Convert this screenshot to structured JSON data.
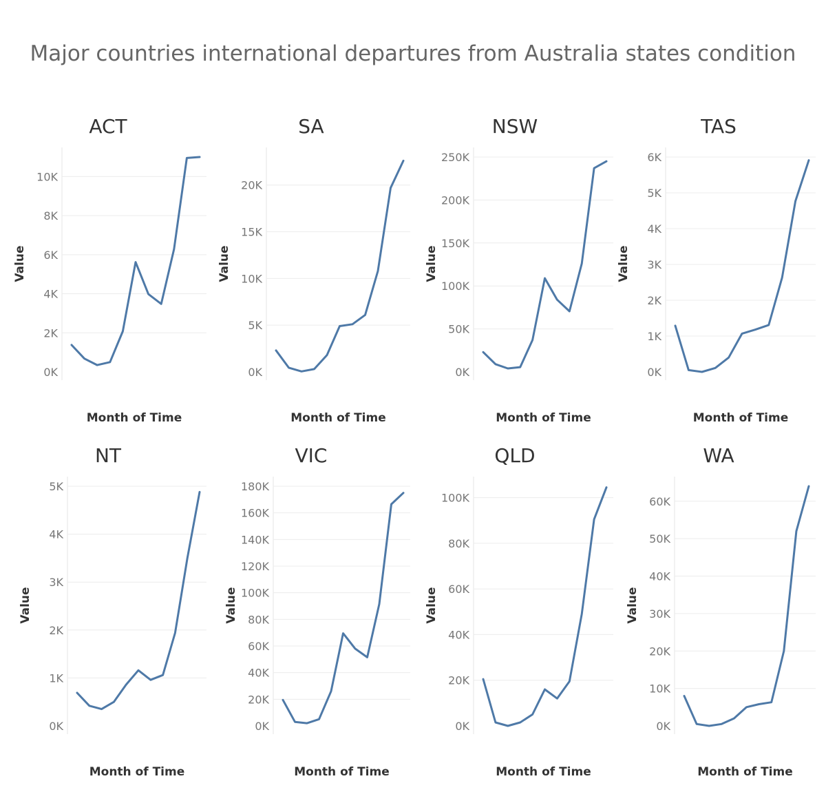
{
  "title": "Major countries international departures from Australia states condition",
  "chart_data": [
    {
      "type": "line",
      "title": "ACT",
      "xlabel": "Month of Time",
      "ylabel": "Value",
      "ylim": [
        0,
        11000
      ],
      "yticks": [
        0,
        2000,
        4000,
        6000,
        8000,
        10000
      ],
      "ytick_labels": [
        "0K",
        "2K",
        "4K",
        "6K",
        "8K",
        "10K"
      ],
      "x": [
        1,
        2,
        3,
        4,
        5,
        6,
        7,
        8,
        9,
        10,
        11
      ],
      "values": [
        1380,
        680,
        350,
        500,
        2080,
        5620,
        3980,
        3480,
        6280,
        10950,
        11000
      ]
    },
    {
      "type": "line",
      "title": "SA",
      "xlabel": "Month of Time",
      "ylabel": "Value",
      "ylim": [
        0,
        23000
      ],
      "yticks": [
        0,
        5000,
        10000,
        15000,
        20000
      ],
      "ytick_labels": [
        "0K",
        "5K",
        "10K",
        "15K",
        "20K"
      ],
      "x": [
        1,
        2,
        3,
        4,
        5,
        6,
        7,
        8,
        9,
        10,
        11
      ],
      "values": [
        2300,
        450,
        50,
        300,
        1800,
        4900,
        5100,
        6100,
        10800,
        19700,
        22600
      ]
    },
    {
      "type": "line",
      "title": "NSW",
      "xlabel": "Month of Time",
      "ylabel": "Value",
      "ylim": [
        0,
        250000
      ],
      "yticks": [
        0,
        50000,
        100000,
        150000,
        200000,
        250000
      ],
      "ytick_labels": [
        "0K",
        "50K",
        "100K",
        "150K",
        "200K",
        "250K"
      ],
      "x": [
        1,
        2,
        3,
        4,
        5,
        6,
        7,
        8,
        9,
        10,
        11
      ],
      "values": [
        23000,
        9000,
        4000,
        5500,
        37000,
        109000,
        84000,
        70500,
        126000,
        237000,
        245000
      ]
    },
    {
      "type": "line",
      "title": "TAS",
      "xlabel": "Month of Time",
      "ylabel": "Value",
      "ylim": [
        0,
        6000
      ],
      "yticks": [
        0,
        1000,
        2000,
        3000,
        4000,
        5000,
        6000
      ],
      "ytick_labels": [
        "0K",
        "1K",
        "2K",
        "3K",
        "4K",
        "5K",
        "6K"
      ],
      "x": [
        1,
        2,
        3,
        4,
        5,
        6,
        7,
        8,
        9,
        10,
        11
      ],
      "values": [
        1290,
        50,
        0,
        110,
        400,
        1070,
        1180,
        1310,
        2630,
        4770,
        5910
      ]
    },
    {
      "type": "line",
      "title": "NT",
      "xlabel": "Month of Time",
      "ylabel": "Value",
      "ylim": [
        0,
        5000
      ],
      "yticks": [
        0,
        1000,
        2000,
        3000,
        4000,
        5000
      ],
      "ytick_labels": [
        "0K",
        "1K",
        "2K",
        "3K",
        "4K",
        "5K"
      ],
      "x": [
        1,
        2,
        3,
        4,
        5,
        6,
        7,
        8,
        9,
        10,
        11
      ],
      "values": [
        690,
        420,
        350,
        500,
        860,
        1160,
        960,
        1060,
        1940,
        3500,
        4880
      ]
    },
    {
      "type": "line",
      "title": "VIC",
      "xlabel": "Month of Time",
      "ylabel": "Value",
      "ylim": [
        0,
        180000
      ],
      "yticks": [
        0,
        20000,
        40000,
        60000,
        80000,
        100000,
        120000,
        140000,
        160000,
        180000
      ],
      "ytick_labels": [
        "0K",
        "20K",
        "40K",
        "60K",
        "80K",
        "100K",
        "120K",
        "140K",
        "160K",
        "180K"
      ],
      "x": [
        1,
        2,
        3,
        4,
        5,
        6,
        7,
        8,
        9,
        10,
        11
      ],
      "values": [
        19500,
        3000,
        2000,
        5000,
        26000,
        69500,
        58000,
        51500,
        91500,
        166500,
        175000
      ]
    },
    {
      "type": "line",
      "title": "QLD",
      "xlabel": "Month of Time",
      "ylabel": "Value",
      "ylim": [
        0,
        105000
      ],
      "yticks": [
        0,
        20000,
        40000,
        60000,
        80000,
        100000
      ],
      "ytick_labels": [
        "0K",
        "20K",
        "40K",
        "60K",
        "80K",
        "100K"
      ],
      "x": [
        1,
        2,
        3,
        4,
        5,
        6,
        7,
        8,
        9,
        10,
        11
      ],
      "values": [
        20500,
        1500,
        0,
        1500,
        5000,
        16000,
        12000,
        19500,
        49000,
        90500,
        104500
      ]
    },
    {
      "type": "line",
      "title": "WA",
      "xlabel": "Month of Time",
      "ylabel": "Value",
      "ylim": [
        0,
        64000
      ],
      "yticks": [
        0,
        10000,
        20000,
        30000,
        40000,
        50000,
        60000
      ],
      "ytick_labels": [
        "0K",
        "10K",
        "20K",
        "30K",
        "40K",
        "50K",
        "60K"
      ],
      "x": [
        1,
        2,
        3,
        4,
        5,
        6,
        7,
        8,
        9,
        10,
        11
      ],
      "values": [
        8000,
        500,
        0,
        500,
        2000,
        5000,
        5800,
        6300,
        20000,
        52000,
        64000
      ]
    }
  ]
}
